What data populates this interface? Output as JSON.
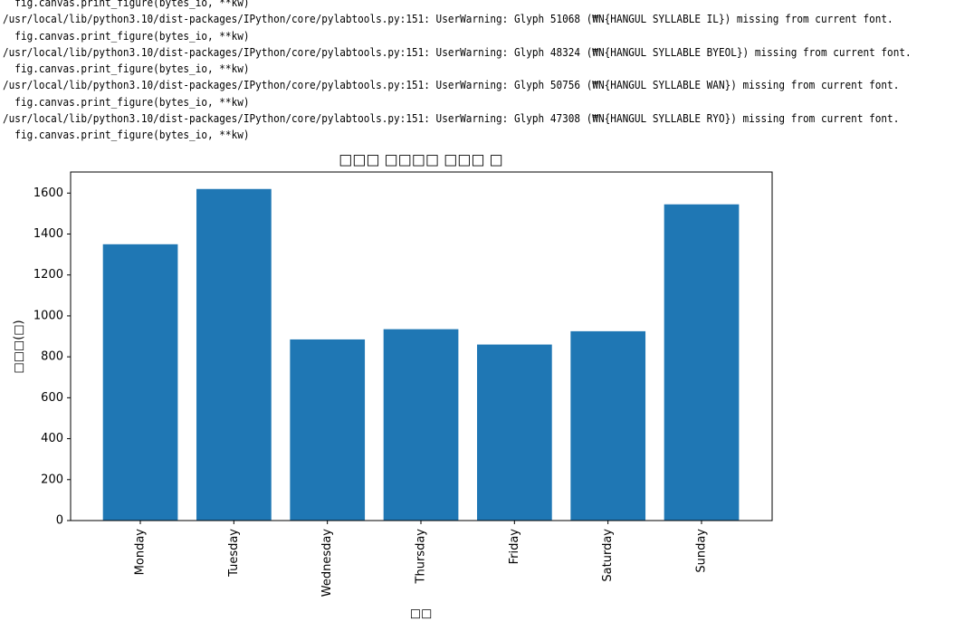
{
  "console": {
    "lines": [
      "  fig.canvas.print_figure(bytes_io, **kw)",
      "/usr/local/lib/python3.10/dist-packages/IPython/core/pylabtools.py:151: UserWarning: Glyph 51068 (₩N{HANGUL SYLLABLE IL}) missing from current font.",
      "  fig.canvas.print_figure(bytes_io, **kw)",
      "/usr/local/lib/python3.10/dist-packages/IPython/core/pylabtools.py:151: UserWarning: Glyph 48324 (₩N{HANGUL SYLLABLE BYEOL}) missing from current font.",
      "  fig.canvas.print_figure(bytes_io, **kw)",
      "/usr/local/lib/python3.10/dist-packages/IPython/core/pylabtools.py:151: UserWarning: Glyph 50756 (₩N{HANGUL SYLLABLE WAN}) missing from current font.",
      "  fig.canvas.print_figure(bytes_io, **kw)",
      "/usr/local/lib/python3.10/dist-packages/IPython/core/pylabtools.py:151: UserWarning: Glyph 47308 (₩N{HANGUL SYLLABLE RYO}) missing from current font.",
      "  fig.canvas.print_figure(bytes_io, **kw)"
    ]
  },
  "chart_data": {
    "type": "bar",
    "title": "□□□ □□□□ □□□ □",
    "x_label": "□□",
    "y_label": "□□□(□)",
    "categories": [
      "Monday",
      "Tuesday",
      "Wednesday",
      "Thursday",
      "Friday",
      "Saturday",
      "Sunday"
    ],
    "values": [
      1350,
      1620,
      885,
      935,
      860,
      925,
      1545
    ],
    "color": "#1f77b4",
    "ylim": [
      0,
      1703
    ],
    "yticks": [
      0,
      200,
      400,
      600,
      800,
      1000,
      1200,
      1400,
      1600
    ]
  }
}
